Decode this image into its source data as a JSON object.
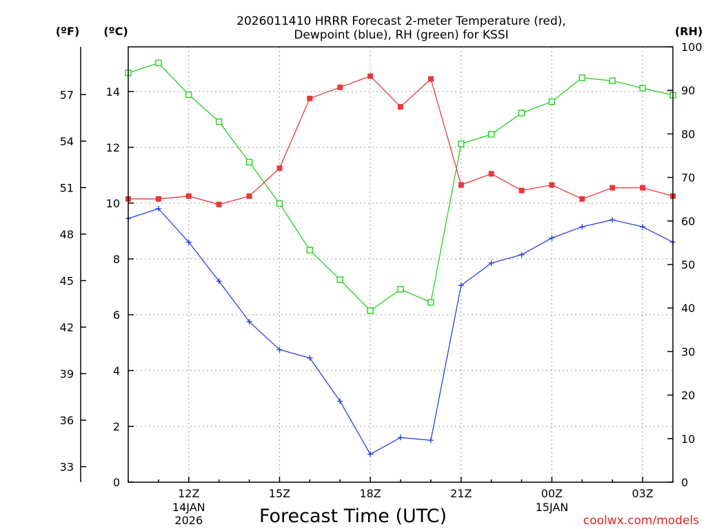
{
  "chart_data": {
    "type": "line",
    "title_lines": [
      "2026011410 HRRR Forecast 2-meter Temperature (red),",
      "Dewpoint (blue), RH (green) for KSSI"
    ],
    "xlabel": "Forecast Time (UTC)",
    "credit": "coolwx.com/models",
    "units": {
      "fahrenheit": "(ºF)",
      "celsius": "(ºC)",
      "rh": "(RH)"
    },
    "x_hours": [
      10,
      11,
      12,
      13,
      14,
      15,
      16,
      17,
      18,
      19,
      20,
      21,
      22,
      23,
      24,
      25,
      26,
      27,
      28
    ],
    "x_range": [
      10,
      28
    ],
    "x_ticks": [
      {
        "hour": 12,
        "label": "12Z",
        "sub1": "14JAN",
        "sub2": "2026"
      },
      {
        "hour": 15,
        "label": "15Z",
        "sub1": "",
        "sub2": ""
      },
      {
        "hour": 18,
        "label": "18Z",
        "sub1": "",
        "sub2": ""
      },
      {
        "hour": 21,
        "label": "21Z",
        "sub1": "",
        "sub2": ""
      },
      {
        "hour": 24,
        "label": "00Z",
        "sub1": "15JAN",
        "sub2": ""
      },
      {
        "hour": 27,
        "label": "03Z",
        "sub1": "",
        "sub2": ""
      }
    ],
    "y_left_celsius": {
      "range": [
        0,
        15.6
      ],
      "ticks": [
        "0",
        "2",
        "4",
        "6",
        "8",
        "10",
        "12",
        "14"
      ]
    },
    "y_left_fahrenheit": {
      "ticks": [
        "33",
        "36",
        "39",
        "42",
        "45",
        "48",
        "51",
        "54",
        "57"
      ]
    },
    "y_right_rh": {
      "range": [
        0,
        100
      ],
      "ticks": [
        "0",
        "10",
        "20",
        "30",
        "40",
        "50",
        "60",
        "70",
        "80",
        "90",
        "100"
      ]
    },
    "series": [
      {
        "name": "Temperature",
        "axis": "celsius",
        "color": "#e8383b",
        "marker": "filled-square",
        "values": [
          10.15,
          10.15,
          10.25,
          9.95,
          10.25,
          11.25,
          13.75,
          14.15,
          14.55,
          13.45,
          14.45,
          10.65,
          11.05,
          10.45,
          10.65,
          10.15,
          10.55,
          10.55,
          10.25
        ]
      },
      {
        "name": "Dewpoint",
        "axis": "celsius",
        "color": "#2a40e0",
        "marker": "plus",
        "values": [
          9.45,
          9.8,
          8.6,
          7.2,
          5.75,
          4.75,
          4.45,
          2.9,
          1.0,
          1.6,
          1.5,
          7.05,
          7.85,
          8.15,
          8.75,
          9.15,
          9.4,
          9.15,
          8.6
        ]
      },
      {
        "name": "RH",
        "axis": "rh",
        "color": "#20d020",
        "marker": "open-square",
        "values": [
          94.0,
          96.3,
          89.0,
          82.8,
          73.5,
          64.0,
          53.3,
          46.5,
          39.4,
          44.3,
          41.3,
          77.7,
          79.9,
          84.8,
          87.4,
          92.9,
          92.2,
          90.5,
          88.9
        ]
      }
    ]
  }
}
